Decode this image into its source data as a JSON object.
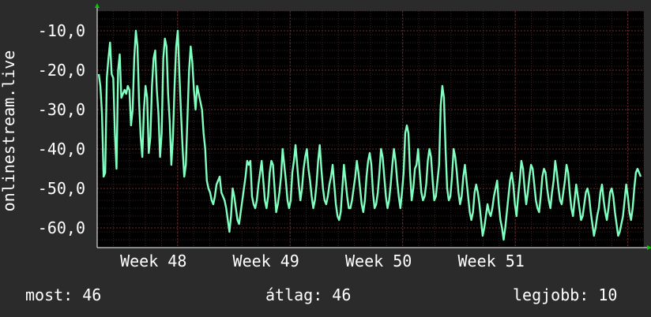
{
  "chart_data": {
    "type": "line",
    "ylabel": "onlinestream.live",
    "x_ticks": [
      "Week 48",
      "Week 49",
      "Week 50",
      "Week 51"
    ],
    "y_ticks": [
      "-10,0",
      "-20,0",
      "-30,0",
      "-40,0",
      "-50,0",
      "-60,0"
    ],
    "y_tick_values": [
      -10,
      -20,
      -30,
      -40,
      -50,
      -60
    ],
    "ylim": [
      -65,
      -5
    ],
    "xlim": [
      0,
      34
    ],
    "grid": true,
    "series": [
      {
        "color": "#7fffc0",
        "values": [
          -21,
          -24,
          -31,
          -47,
          -46,
          -22,
          -17,
          -13,
          -21,
          -22,
          -36,
          -45,
          -20,
          -16,
          -27,
          -26,
          -25,
          -26,
          -24,
          -25,
          -34,
          -30,
          -17,
          -10,
          -14,
          -28,
          -37,
          -42,
          -30,
          -24,
          -27,
          -41,
          -37,
          -24,
          -17,
          -15,
          -25,
          -31,
          -42,
          -36,
          -17,
          -12,
          -14,
          -26,
          -33,
          -44,
          -37,
          -24,
          -14,
          -10,
          -21,
          -31,
          -40,
          -47,
          -44,
          -32,
          -20,
          -14,
          -18,
          -25,
          -30,
          -24,
          -26,
          -28,
          -30,
          -36,
          -40,
          -48,
          -50,
          -51,
          -53,
          -54,
          -52,
          -49,
          -48,
          -47,
          -51,
          -52,
          -53,
          -55,
          -58,
          -61,
          -57,
          -50,
          -52,
          -55,
          -58,
          -59,
          -56,
          -53,
          -50,
          -47,
          -43,
          -44,
          -43,
          -52,
          -54,
          -55,
          -53,
          -49,
          -46,
          -43,
          -48,
          -53,
          -55,
          -52,
          -46,
          -43,
          -44,
          -50,
          -56,
          -54,
          -51,
          -47,
          -40,
          -44,
          -48,
          -53,
          -55,
          -53,
          -46,
          -43,
          -39,
          -44,
          -49,
          -53,
          -50,
          -45,
          -42,
          -40,
          -45,
          -48,
          -52,
          -55,
          -53,
          -49,
          -43,
          -39,
          -45,
          -50,
          -53,
          -54,
          -52,
          -49,
          -47,
          -44,
          -49,
          -54,
          -57,
          -58,
          -56,
          -50,
          -44,
          -48,
          -52,
          -55,
          -55,
          -53,
          -50,
          -47,
          -43,
          -46,
          -50,
          -54,
          -56,
          -53,
          -47,
          -43,
          -41,
          -44,
          -51,
          -55,
          -54,
          -51,
          -46,
          -40,
          -42,
          -47,
          -52,
          -55,
          -53,
          -49,
          -44,
          -40,
          -43,
          -48,
          -52,
          -55,
          -51,
          -46,
          -36,
          -34,
          -36,
          -46,
          -53,
          -50,
          -45,
          -44,
          -40,
          -46,
          -51,
          -53,
          -52,
          -49,
          -43,
          -40,
          -42,
          -48,
          -53,
          -52,
          -48,
          -44,
          -29,
          -24,
          -27,
          -40,
          -50,
          -53,
          -52,
          -47,
          -40,
          -42,
          -46,
          -51,
          -54,
          -52,
          -47,
          -44,
          -48,
          -52,
          -56,
          -58,
          -56,
          -51,
          -49,
          -51,
          -54,
          -58,
          -62,
          -60,
          -57,
          -54,
          -56,
          -57,
          -55,
          -52,
          -50,
          -48,
          -54,
          -58,
          -60,
          -63,
          -60,
          -56,
          -52,
          -48,
          -46,
          -49,
          -54,
          -57,
          -52,
          -48,
          -43,
          -45,
          -50,
          -54,
          -51,
          -47,
          -44,
          -45,
          -49,
          -53,
          -55,
          -56,
          -52,
          -47,
          -45,
          -46,
          -50,
          -53,
          -55,
          -51,
          -48,
          -43,
          -46,
          -50,
          -53,
          -54,
          -51,
          -48,
          -44,
          -46,
          -51,
          -55,
          -57,
          -53,
          -49,
          -52,
          -55,
          -58,
          -57,
          -54,
          -51,
          -50,
          -52,
          -56,
          -59,
          -62,
          -60,
          -57,
          -55,
          -51,
          -49,
          -53,
          -56,
          -58,
          -55,
          -51,
          -50,
          -52,
          -56,
          -59,
          -62,
          -61,
          -59,
          -57,
          -53,
          -49,
          -52,
          -56,
          -58,
          -55,
          -50,
          -46,
          -45,
          -46,
          -47
        ]
      }
    ]
  },
  "stats": {
    "now": "most: 46",
    "avg": "átlag: 46",
    "max": "legjobb: 10"
  },
  "colors": {
    "background": "#2b2b2b",
    "plot_background": "#000000",
    "grid_major": "#6b2b2b",
    "grid_minor": "#3a2222",
    "line": "#7fffc0",
    "axis_arrow": "#00cc00"
  }
}
